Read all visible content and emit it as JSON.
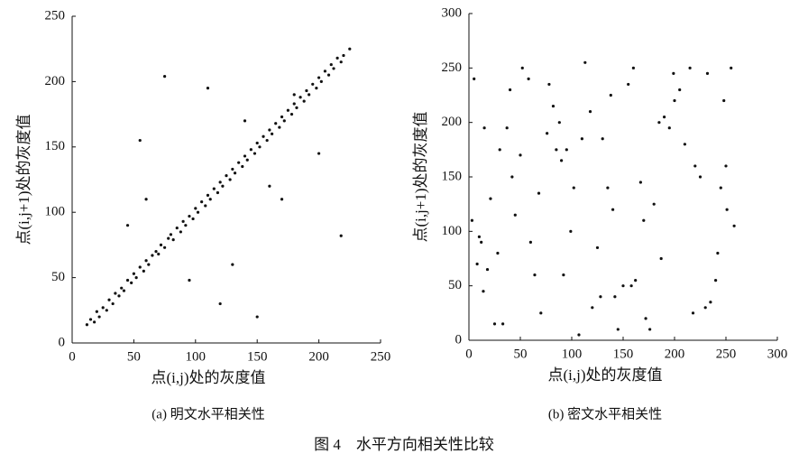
{
  "figure_caption": "图 4　水平方向相关性比较",
  "chart_data": [
    {
      "type": "scatter",
      "caption": "(a)  明文水平相关性",
      "x_label": "点(i,j)处的灰度值",
      "y_label": "点(i,j+1)处的灰度值",
      "xlim": [
        0,
        250
      ],
      "ylim": [
        0,
        250
      ],
      "xticks": [
        0,
        50,
        100,
        150,
        200,
        250
      ],
      "yticks": [
        0,
        50,
        100,
        150,
        200,
        250
      ],
      "series": [
        {
          "color": "#111111",
          "x": [
            12,
            15,
            18,
            20,
            22,
            25,
            28,
            30,
            33,
            35,
            38,
            40,
            42,
            45,
            48,
            50,
            52,
            55,
            58,
            60,
            62,
            65,
            68,
            70,
            72,
            75,
            78,
            80,
            82,
            85,
            88,
            90,
            92,
            95,
            98,
            100,
            102,
            105,
            108,
            110,
            112,
            115,
            118,
            120,
            122,
            125,
            128,
            130,
            132,
            135,
            138,
            140,
            142,
            145,
            148,
            150,
            152,
            155,
            158,
            160,
            162,
            165,
            168,
            170,
            172,
            175,
            178,
            180,
            182,
            185,
            188,
            190,
            192,
            195,
            198,
            200,
            202,
            205,
            208,
            210,
            212,
            215,
            218,
            220,
            225,
            75,
            110,
            150,
            180,
            218,
            55,
            95,
            130,
            170,
            200,
            45,
            60,
            120,
            140,
            160
          ],
          "values": [
            14,
            18,
            16,
            24,
            20,
            27,
            25,
            33,
            30,
            38,
            36,
            42,
            40,
            48,
            46,
            53,
            50,
            58,
            55,
            63,
            60,
            67,
            70,
            68,
            75,
            73,
            80,
            83,
            79,
            88,
            85,
            93,
            90,
            97,
            95,
            103,
            100,
            108,
            105,
            113,
            110,
            118,
            115,
            123,
            120,
            128,
            125,
            133,
            130,
            138,
            135,
            143,
            140,
            148,
            145,
            153,
            150,
            158,
            155,
            163,
            160,
            168,
            165,
            173,
            170,
            178,
            175,
            183,
            180,
            188,
            185,
            193,
            190,
            198,
            195,
            203,
            200,
            208,
            205,
            213,
            210,
            218,
            215,
            220,
            225,
            204,
            195,
            20,
            190,
            82,
            155,
            48,
            60,
            110,
            145,
            90,
            110,
            30,
            170,
            120
          ]
        }
      ]
    },
    {
      "type": "scatter",
      "caption": "(b)  密文水平相关性",
      "x_label": "点(i,j)处的灰度值",
      "y_label": "点(i,j+1)处的灰度值",
      "xlim": [
        0,
        300
      ],
      "ylim": [
        0,
        300
      ],
      "xticks": [
        0,
        50,
        100,
        150,
        200,
        250,
        300
      ],
      "yticks": [
        0,
        50,
        100,
        150,
        200,
        250,
        300
      ],
      "series": [
        {
          "color": "#111111",
          "x": [
            5,
            230,
            118,
            42,
            187,
            76,
            251,
            33,
            160,
            99,
            210,
            14,
            138,
            64,
            245,
            88,
            172,
            21,
            125,
            199,
            50,
            240,
            107,
            155,
            3,
            82,
            220,
            128,
            37,
            180,
            255,
            60,
            145,
            95,
            205,
            18,
            167,
            113,
            235,
            45,
            190,
            70,
            130,
            10,
            225,
            150,
            58,
            102,
            248,
            28,
            176,
            90,
            215,
            140,
            8,
            195,
            120,
            40,
            258,
            85,
            162,
            25,
            232,
            110,
            68,
            185,
            12,
            142,
            250,
            52,
            200,
            92,
            170,
            30,
            218,
            135,
            78,
            242,
            15,
            158
          ],
          "values": [
            240,
            30,
            210,
            150,
            75,
            190,
            120,
            15,
            250,
            100,
            180,
            45,
            225,
            60,
            140,
            200,
            20,
            130,
            85,
            245,
            170,
            55,
            5,
            235,
            110,
            215,
            160,
            40,
            195,
            125,
            250,
            90,
            10,
            175,
            230,
            65,
            145,
            255,
            35,
            115,
            205,
            25,
            185,
            95,
            150,
            50,
            240,
            140,
            220,
            80,
            10,
            165,
            250,
            120,
            70,
            195,
            30,
            230,
            105,
            175,
            55,
            15,
            245,
            185,
            135,
            200,
            90,
            40,
            160,
            250,
            220,
            60,
            110,
            175,
            25,
            140,
            235,
            80,
            195,
            50
          ]
        }
      ]
    }
  ]
}
